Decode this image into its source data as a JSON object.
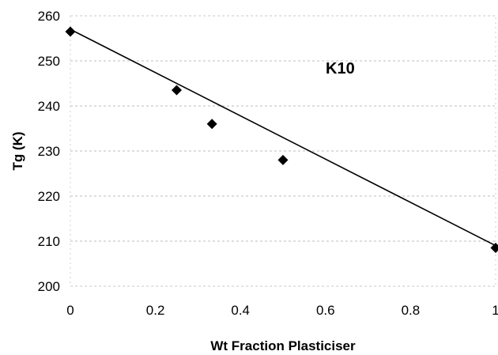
{
  "chart_data": {
    "type": "scatter",
    "xlabel": "Wt Fraction Plasticiser",
    "ylabel": "Tg (K)",
    "annotation": "K10",
    "xlim": [
      0,
      1
    ],
    "ylim": [
      200,
      260
    ],
    "x_ticks": [
      "0",
      "0.2",
      "0.4",
      "0.6",
      "0.8",
      "1"
    ],
    "y_ticks": [
      "200",
      "210",
      "220",
      "230",
      "240",
      "250",
      "260"
    ],
    "x_tick_values": [
      0,
      0.2,
      0.4,
      0.6,
      0.8,
      1
    ],
    "y_tick_values": [
      200,
      210,
      220,
      230,
      240,
      250,
      260
    ],
    "grid": "horizontal",
    "series": [
      {
        "points": [
          {
            "x": 0,
            "y": 256.5
          },
          {
            "x": 0.25,
            "y": 243.5
          },
          {
            "x": 0.333,
            "y": 236
          },
          {
            "x": 0.5,
            "y": 228
          },
          {
            "x": 1,
            "y": 208.5
          }
        ]
      }
    ],
    "trendline": {
      "x": [
        0,
        1
      ],
      "y": [
        257,
        209
      ]
    }
  }
}
